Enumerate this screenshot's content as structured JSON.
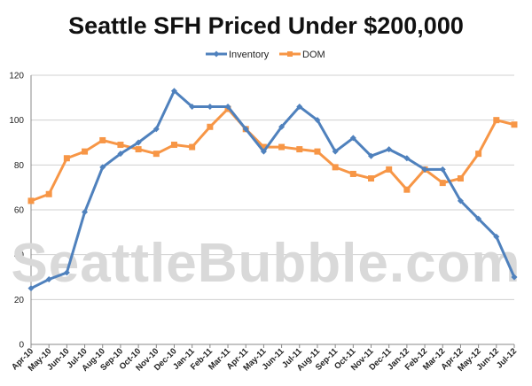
{
  "chart_data": {
    "type": "line",
    "title": "Seattle SFH Priced Under $200,000",
    "xlabel": "",
    "ylabel": "",
    "ylim": [
      0,
      120
    ],
    "yticks": [
      0,
      20,
      40,
      60,
      80,
      100,
      120
    ],
    "grid": "horizontal",
    "legend_position": "top",
    "watermark": "SeattleBubble.com",
    "categories": [
      "Apr-10",
      "May-10",
      "Jun-10",
      "Jul-10",
      "Aug-10",
      "Sep-10",
      "Oct-10",
      "Nov-10",
      "Dec-10",
      "Jan-11",
      "Feb-11",
      "Mar-11",
      "Apr-11",
      "May-11",
      "Jun-11",
      "Jul-11",
      "Aug-11",
      "Sep-11",
      "Oct-11",
      "Nov-11",
      "Dec-11",
      "Jan-12",
      "Feb-12",
      "Mar-12",
      "Apr-12",
      "May-12",
      "Jun-12",
      "Jul-12"
    ],
    "series": [
      {
        "name": "Inventory",
        "color": "#4f81bd",
        "marker": "diamond",
        "values": [
          25,
          29,
          32,
          59,
          79,
          85,
          90,
          96,
          113,
          106,
          106,
          106,
          96,
          86,
          97,
          106,
          100,
          86,
          92,
          84,
          87,
          83,
          78,
          78,
          64,
          56,
          48,
          30
        ]
      },
      {
        "name": "DOM",
        "color": "#f79646",
        "marker": "square",
        "values": [
          64,
          67,
          83,
          86,
          91,
          89,
          87,
          85,
          89,
          88,
          97,
          105,
          96,
          88,
          88,
          87,
          86,
          79,
          76,
          74,
          78,
          69,
          78,
          72,
          74,
          85,
          100,
          98
        ]
      }
    ]
  }
}
